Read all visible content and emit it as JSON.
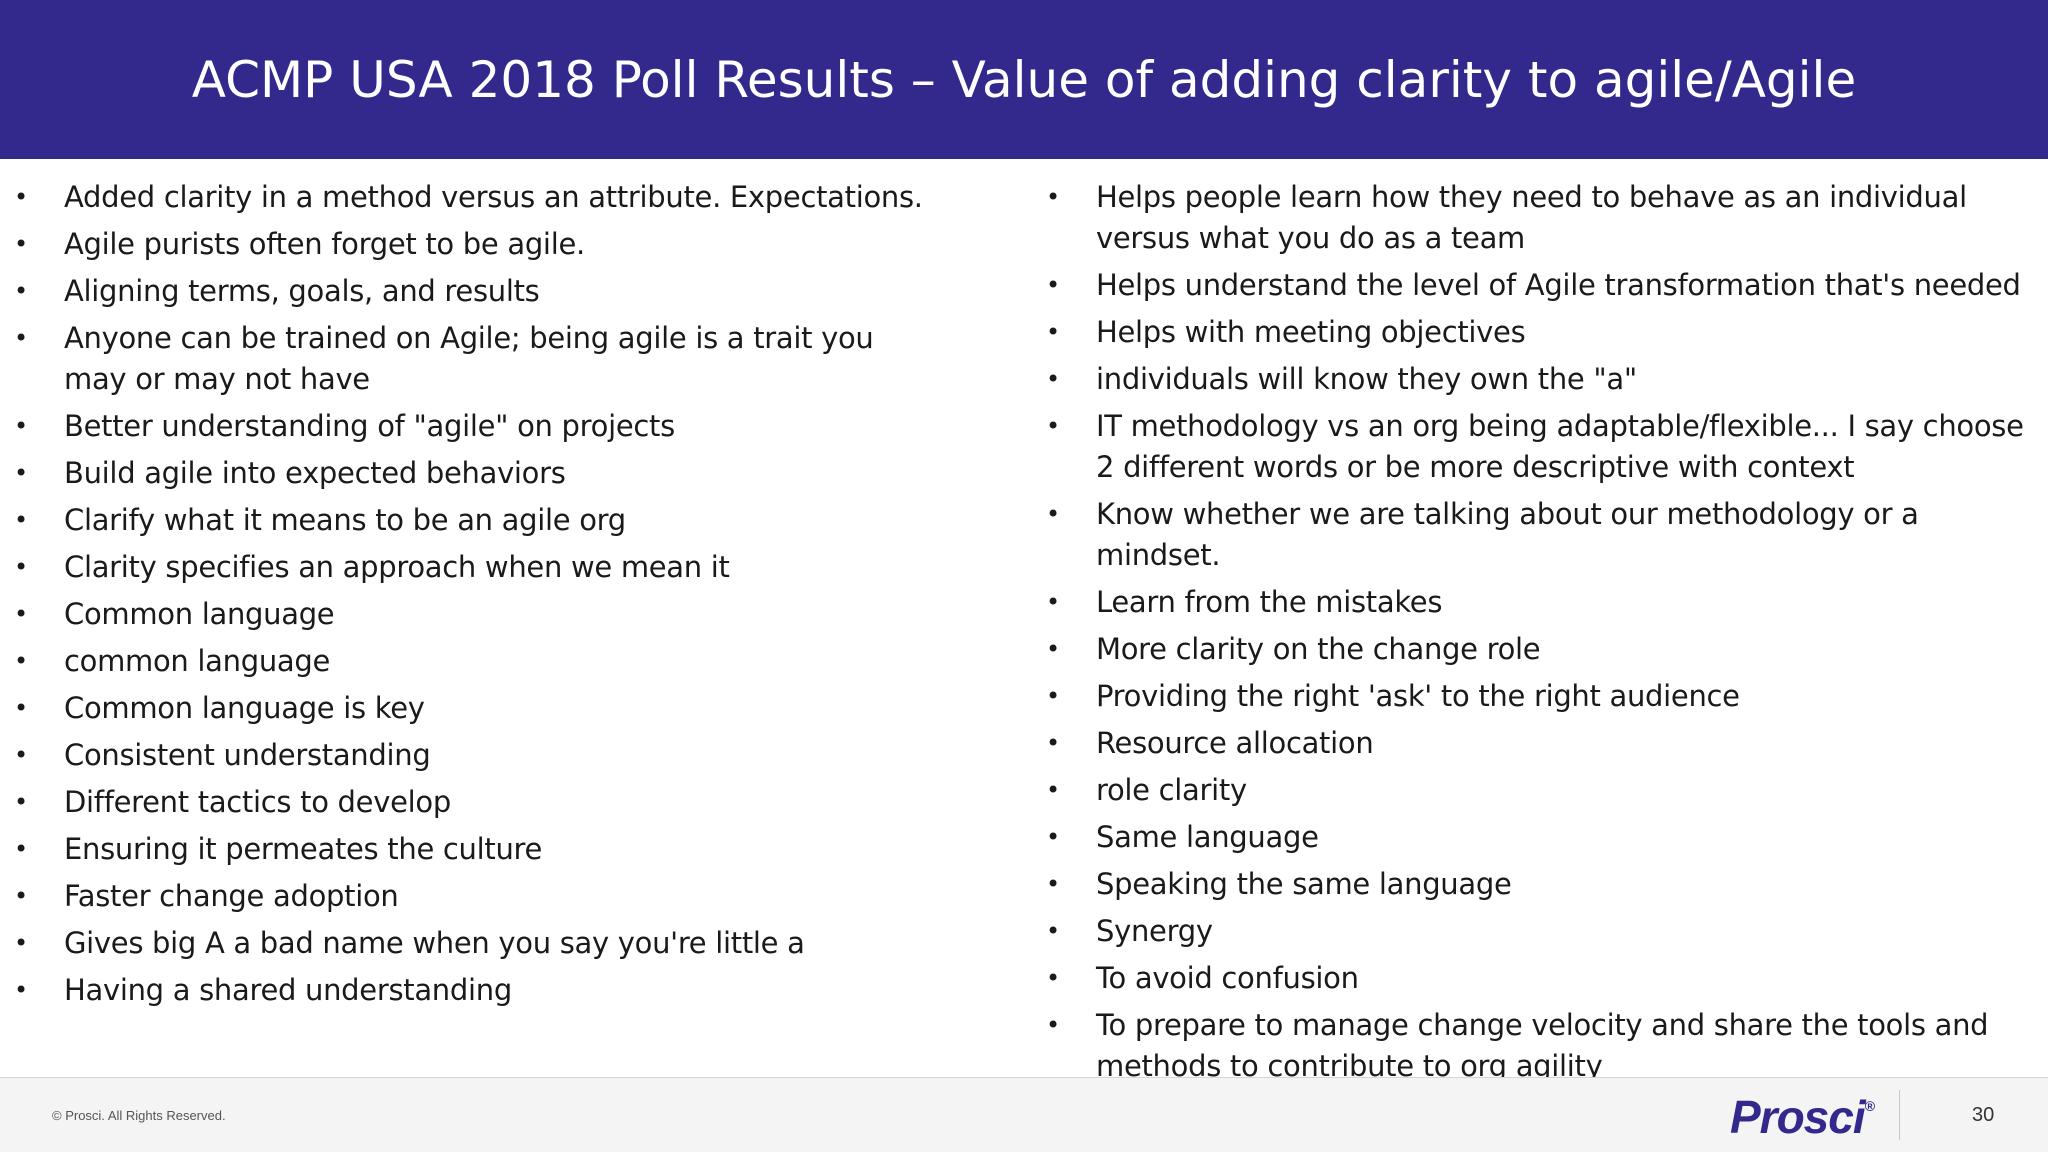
{
  "slide": {
    "title": "ACMP USA 2018 Poll Results – Value of adding clarity to agile/Agile",
    "colors": {
      "header_bg": "#33298c",
      "logo": "#33298c"
    }
  },
  "left_items": [
    "Added clarity in a method versus an attribute. Expectations.",
    "Agile purists often forget to be agile.",
    "Aligning terms, goals, and results",
    "Anyone can be trained on Agile; being agile is a trait you may or may not have",
    "Better understanding of \"agile\" on projects",
    "Build agile into expected behaviors",
    "Clarify what it means to be an agile org",
    "Clarity specifies an approach when we mean it",
    "Common language",
    "common language",
    "Common language is key",
    "Consistent understanding",
    "Different tactics to develop",
    "Ensuring it permeates the culture",
    "Faster change adoption",
    "Gives big A a bad name when you say you're little a",
    "Having a shared understanding"
  ],
  "right_items": [
    "Helps people learn how they need to behave as an individual versus what you do as a team",
    "Helps understand the level of Agile transformation that's needed",
    "Helps with meeting objectives",
    "individuals will know they own the \"a\"",
    "IT methodology vs an org being adaptable/flexible... I say choose 2 different words or be more descriptive with context",
    "Know whether we are talking about our methodology or a mindset.",
    "Learn from the mistakes",
    "More clarity on the change role",
    "Providing the right 'ask' to the right audience",
    "Resource allocation",
    "role clarity",
    "Same language",
    "Speaking the same language",
    "Synergy",
    "To avoid confusion",
    "To prepare to manage change velocity and share the tools and methods to contribute to org agility"
  ],
  "footer": {
    "copyright": "© Prosci. All Rights Reserved.",
    "logo_text": "Prosci",
    "logo_mark": "®",
    "page_number": "30"
  }
}
